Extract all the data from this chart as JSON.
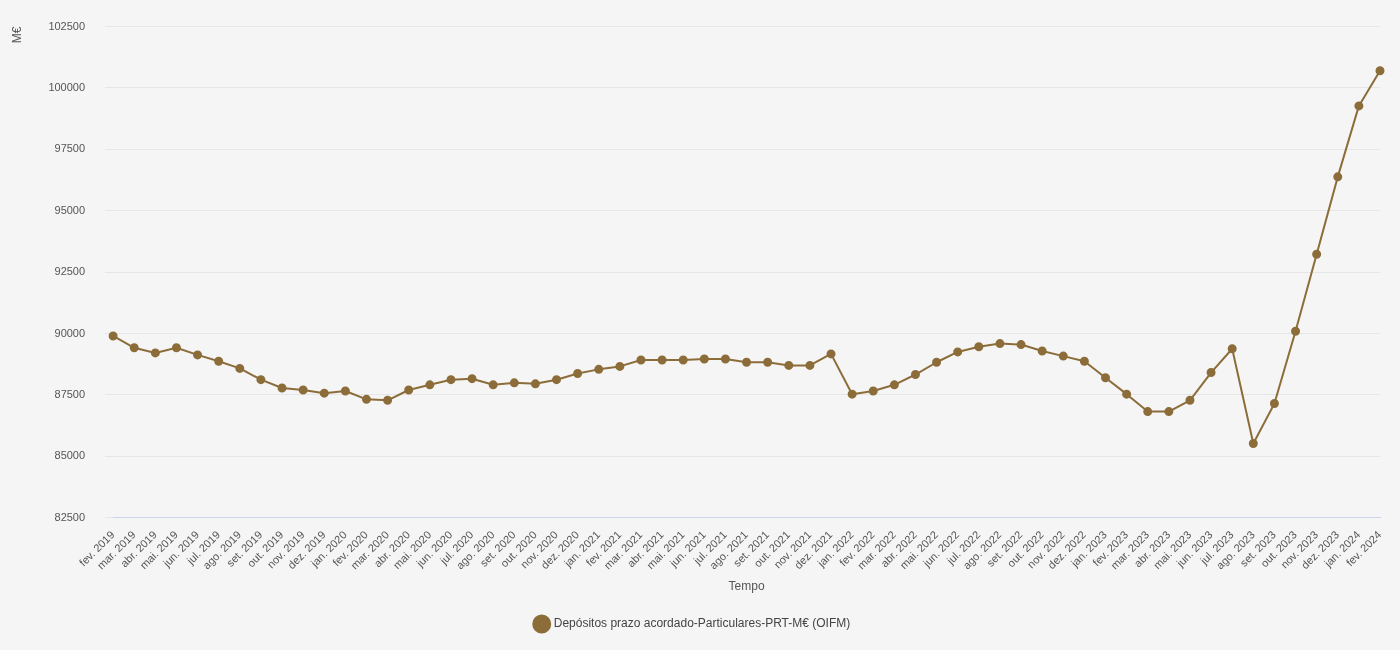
{
  "chart_data": {
    "type": "line",
    "xlabel": "Tempo",
    "ylabel": "M€",
    "categories": [
      "fev. 2019",
      "mar. 2019",
      "abr. 2019",
      "mai. 2019",
      "jun. 2019",
      "jul. 2019",
      "ago. 2019",
      "set. 2019",
      "out. 2019",
      "nov. 2019",
      "dez. 2019",
      "jan. 2020",
      "fev. 2020",
      "mar. 2020",
      "abr. 2020",
      "mai. 2020",
      "jun. 2020",
      "jul. 2020",
      "ago. 2020",
      "set. 2020",
      "out. 2020",
      "nov. 2020",
      "dez. 2020",
      "jan. 2021",
      "fev. 2021",
      "mar. 2021",
      "abr. 2021",
      "mai. 2021",
      "jun. 2021",
      "jul. 2021",
      "ago. 2021",
      "set. 2021",
      "out. 2021",
      "nov. 2021",
      "dez. 2021",
      "jan. 2022",
      "fev. 2022",
      "mar. 2022",
      "abr. 2022",
      "mai. 2022",
      "jun. 2022",
      "jul. 2022",
      "ago. 2022",
      "set. 2022",
      "out. 2022",
      "nov. 2022",
      "dez. 2022",
      "jan. 2023",
      "fev. 2023",
      "mar. 2023",
      "abr. 2023",
      "mai. 2023",
      "jun. 2023",
      "jul. 2023",
      "ago. 2023",
      "set. 2023",
      "out. 2023",
      "nov. 2023",
      "dez. 2023",
      "jan. 2024",
      "fev. 2024"
    ],
    "series": [
      {
        "name": "Depósitos prazo acordado-Particulares-PRT-M€ (OIFM)",
        "color": "#8c6d3a",
        "values": [
          89900,
          89420,
          89210,
          89420,
          89130,
          88870,
          88580,
          88120,
          87780,
          87700,
          87570,
          87660,
          87320,
          87280,
          87700,
          87910,
          88120,
          88160,
          87910,
          87990,
          87950,
          88120,
          88370,
          88540,
          88660,
          88920,
          88920,
          88920,
          88960,
          88960,
          88830,
          88830,
          88700,
          88700,
          89170,
          87530,
          87660,
          87910,
          88330,
          88830,
          89250,
          89460,
          89590,
          89550,
          89290,
          89080,
          88870,
          88200,
          87530,
          86820,
          86820,
          87280,
          88410,
          89380,
          85520,
          87150,
          90090,
          93230,
          96380,
          99270,
          100700
        ]
      }
    ],
    "ylim": [
      82500,
      102500
    ],
    "yticks": [
      82500,
      85000,
      87500,
      90000,
      92500,
      95000,
      97500,
      100000,
      102500
    ],
    "grid": "y",
    "legend": "bottom",
    "marker": "circle",
    "line_style": "solid"
  }
}
